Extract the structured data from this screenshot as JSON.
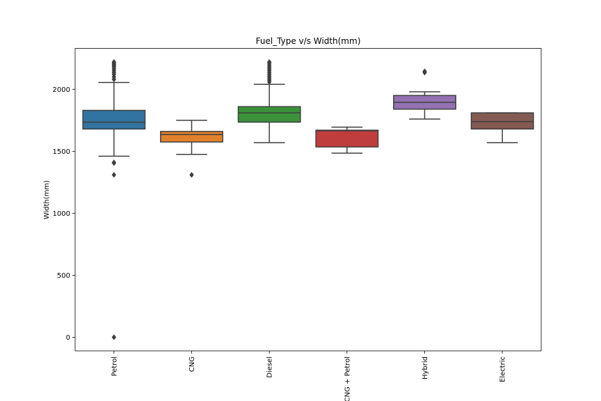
{
  "chart_data": {
    "type": "box",
    "title": "Fuel_Type v/s Width(mm)",
    "xlabel": "",
    "ylabel": "Width(mm)",
    "ylim": [
      -110,
      2330
    ],
    "yticks": [
      0,
      500,
      1000,
      1500,
      2000
    ],
    "grid": false,
    "legend": "none",
    "categories": [
      "Petrol",
      "CNG",
      "Diesel",
      "CNG + Petrol",
      "Hybrid",
      "Electric"
    ],
    "boxes": [
      {
        "name": "Petrol",
        "color": "#3274a1",
        "q1": 1680,
        "median": 1735,
        "q3": 1830,
        "whisker_low": 1460,
        "whisker_high": 2055,
        "outliers": [
          0,
          1310,
          1405,
          1410,
          2080,
          2100,
          2120,
          2135,
          2150,
          2165,
          2180,
          2190,
          2200,
          2210,
          2220
        ]
      },
      {
        "name": "CNG",
        "color": "#e1812c",
        "q1": 1575,
        "median": 1635,
        "q3": 1660,
        "whisker_low": 1475,
        "whisker_high": 1750,
        "outliers": [
          1310
        ]
      },
      {
        "name": "Diesel",
        "color": "#3a923a",
        "q1": 1735,
        "median": 1810,
        "q3": 1860,
        "whisker_low": 1570,
        "whisker_high": 2040,
        "outliers": [
          2060,
          2075,
          2090,
          2105,
          2120,
          2135,
          2150,
          2165,
          2180,
          2195,
          2210,
          2220
        ]
      },
      {
        "name": "CNG + Petrol",
        "color": "#c03d3e",
        "q1": 1535,
        "median": 1665,
        "q3": 1670,
        "whisker_low": 1485,
        "whisker_high": 1695,
        "outliers": []
      },
      {
        "name": "Hybrid",
        "color": "#9372b2",
        "q1": 1840,
        "median": 1895,
        "q3": 1950,
        "whisker_low": 1760,
        "whisker_high": 1980,
        "outliers": [
          2135,
          2145
        ]
      },
      {
        "name": "Electric",
        "color": "#845b53",
        "q1": 1680,
        "median": 1740,
        "q3": 1810,
        "whisker_low": 1570,
        "whisker_high": 1810,
        "outliers": []
      }
    ]
  }
}
